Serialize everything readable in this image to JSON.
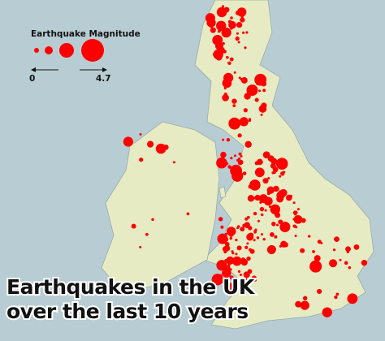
{
  "title": [
    "Earthquakes in the UK",
    "over the last 10 years"
  ],
  "legend": {
    "title": "Earthquake Magnitude",
    "scale": [
      0,
      4.7
    ]
  }
}
